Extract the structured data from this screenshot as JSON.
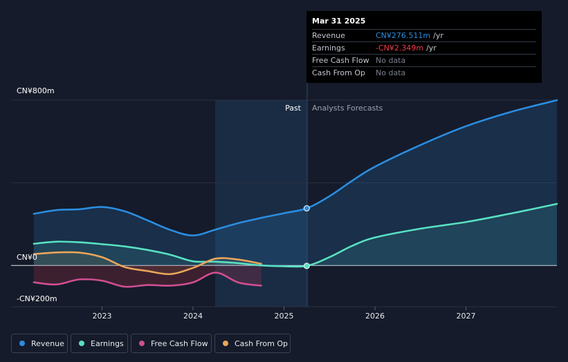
{
  "chart_data": {
    "type": "line",
    "y_tick_labels": [
      "CN¥800m",
      "CN¥0",
      "-CN¥200m"
    ],
    "x_tick_labels": [
      "2023",
      "2024",
      "2025",
      "2026",
      "2027"
    ],
    "ylim": [
      -200,
      800
    ],
    "past_label": "Past",
    "forecast_label": "Analysts Forecasts",
    "series": [
      {
        "name": "Revenue",
        "color": "#2b8de0",
        "forecast": true,
        "points": [
          [
            2022.25,
            250
          ],
          [
            2022.5,
            268
          ],
          [
            2022.75,
            272
          ],
          [
            2023.0,
            283
          ],
          [
            2023.25,
            262
          ],
          [
            2023.5,
            218
          ],
          [
            2023.75,
            172
          ],
          [
            2024.0,
            145
          ],
          [
            2024.25,
            174
          ],
          [
            2024.5,
            205
          ],
          [
            2024.75,
            230
          ],
          [
            2025.0,
            253
          ],
          [
            2025.25,
            276.511
          ],
          [
            2025.5,
            335
          ],
          [
            2025.75,
            410
          ],
          [
            2026.0,
            478
          ],
          [
            2026.5,
            583
          ],
          [
            2027.0,
            674
          ],
          [
            2027.5,
            744
          ],
          [
            2028.0,
            800
          ]
        ]
      },
      {
        "name": "Earnings",
        "color": "#58e1c3",
        "forecast": true,
        "points": [
          [
            2022.25,
            105
          ],
          [
            2022.5,
            115
          ],
          [
            2022.75,
            112
          ],
          [
            2023.0,
            103
          ],
          [
            2023.25,
            92
          ],
          [
            2023.5,
            75
          ],
          [
            2023.75,
            52
          ],
          [
            2024.0,
            20
          ],
          [
            2024.25,
            18
          ],
          [
            2024.5,
            11
          ],
          [
            2024.75,
            0
          ],
          [
            2025.0,
            -4
          ],
          [
            2025.25,
            -2.349
          ],
          [
            2025.5,
            40
          ],
          [
            2025.75,
            95
          ],
          [
            2026.0,
            135
          ],
          [
            2026.5,
            178
          ],
          [
            2027.0,
            210
          ],
          [
            2027.5,
            252
          ],
          [
            2028.0,
            298
          ]
        ]
      },
      {
        "name": "Free Cash Flow",
        "color": "#cf4e91",
        "forecast": false,
        "points": [
          [
            2022.25,
            -82
          ],
          [
            2022.5,
            -92
          ],
          [
            2022.75,
            -68
          ],
          [
            2023.0,
            -74
          ],
          [
            2023.25,
            -103
          ],
          [
            2023.5,
            -95
          ],
          [
            2023.75,
            -98
          ],
          [
            2024.0,
            -82
          ],
          [
            2024.25,
            -35
          ],
          [
            2024.5,
            -83
          ],
          [
            2024.75,
            -98
          ]
        ]
      },
      {
        "name": "Cash From Op",
        "color": "#e8a65a",
        "forecast": false,
        "points": [
          [
            2022.25,
            55
          ],
          [
            2022.5,
            63
          ],
          [
            2022.75,
            62
          ],
          [
            2023.0,
            40
          ],
          [
            2023.25,
            -8
          ],
          [
            2023.5,
            -27
          ],
          [
            2023.75,
            -42
          ],
          [
            2024.0,
            -12
          ],
          [
            2024.25,
            33
          ],
          [
            2024.5,
            28
          ],
          [
            2024.75,
            8
          ]
        ]
      }
    ]
  },
  "tooltip": {
    "date": "Mar 31 2025",
    "rows": [
      {
        "label": "Revenue",
        "value": "CN¥276.511m",
        "unit": "/yr",
        "color": "#2b8de0"
      },
      {
        "label": "Earnings",
        "value": "-CN¥2.349m",
        "unit": "/yr",
        "color": "#f23c4b"
      },
      {
        "label": "Free Cash Flow",
        "value": "No data",
        "unit": "",
        "color": "#7a808c"
      },
      {
        "label": "Cash From Op",
        "value": "No data",
        "unit": "",
        "color": "#7a808c"
      }
    ]
  },
  "legend": [
    {
      "label": "Revenue",
      "color": "#2b8de0"
    },
    {
      "label": "Earnings",
      "color": "#58e1c3"
    },
    {
      "label": "Free Cash Flow",
      "color": "#cf4e91"
    },
    {
      "label": "Cash From Op",
      "color": "#e8a65a"
    }
  ]
}
